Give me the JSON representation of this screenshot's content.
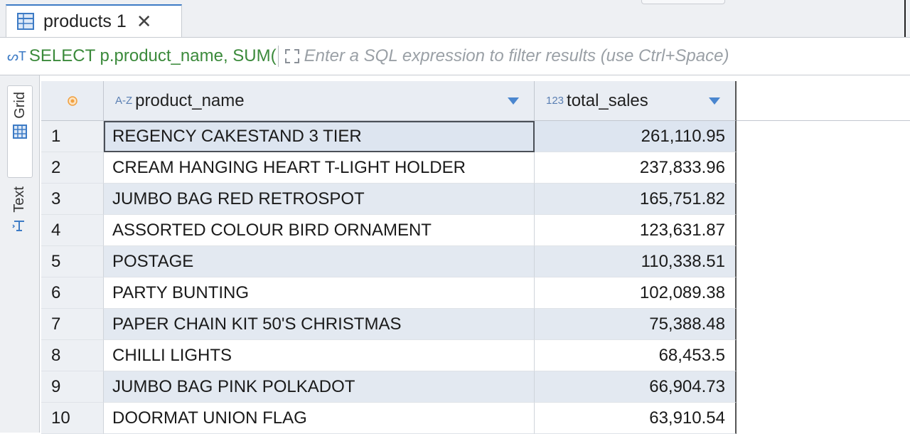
{
  "tab": {
    "label": "products 1",
    "close_glyph": "✕",
    "icon": "table-grid-icon"
  },
  "filter": {
    "sql_icon_glyph": "ᔕT",
    "query_preview": "SELECT p.product_name, SUM(",
    "placeholder": "Enter a SQL expression to filter results (use Ctrl+Space)"
  },
  "side_tabs": [
    {
      "label": "Grid",
      "icon": "grid-icon",
      "active": true
    },
    {
      "label": "Text",
      "icon": "text-view-icon",
      "active": false
    }
  ],
  "grid": {
    "columns": [
      {
        "type_tag": "A-Z",
        "name": "product_name"
      },
      {
        "type_tag": "123",
        "name": "total_sales"
      }
    ],
    "rows": [
      {
        "num": "1",
        "product_name": "REGENCY CAKESTAND 3 TIER",
        "total_sales": "261,110.95"
      },
      {
        "num": "2",
        "product_name": "CREAM HANGING HEART T-LIGHT HOLDER",
        "total_sales": "237,833.96"
      },
      {
        "num": "3",
        "product_name": "JUMBO BAG RED RETROSPOT",
        "total_sales": "165,751.82"
      },
      {
        "num": "4",
        "product_name": "ASSORTED COLOUR BIRD ORNAMENT",
        "total_sales": "123,631.87"
      },
      {
        "num": "5",
        "product_name": "POSTAGE",
        "total_sales": "110,338.51"
      },
      {
        "num": "6",
        "product_name": "PARTY BUNTING",
        "total_sales": "102,089.38"
      },
      {
        "num": "7",
        "product_name": "PAPER CHAIN KIT 50'S CHRISTMAS",
        "total_sales": "75,388.48"
      },
      {
        "num": "8",
        "product_name": "CHILLI LIGHTS",
        "total_sales": "68,453.5"
      },
      {
        "num": "9",
        "product_name": "JUMBO BAG PINK POLKADOT",
        "total_sales": "66,904.73"
      },
      {
        "num": "10",
        "product_name": "DOORMAT UNION FLAG",
        "total_sales": "63,910.54"
      }
    ]
  },
  "colors": {
    "accent": "#3d7bc5",
    "sql_text": "#3b8a3b",
    "row_alt": "#e3e9f1",
    "header_bg": "#e9edf3",
    "corner_dot": "#f0a040"
  }
}
